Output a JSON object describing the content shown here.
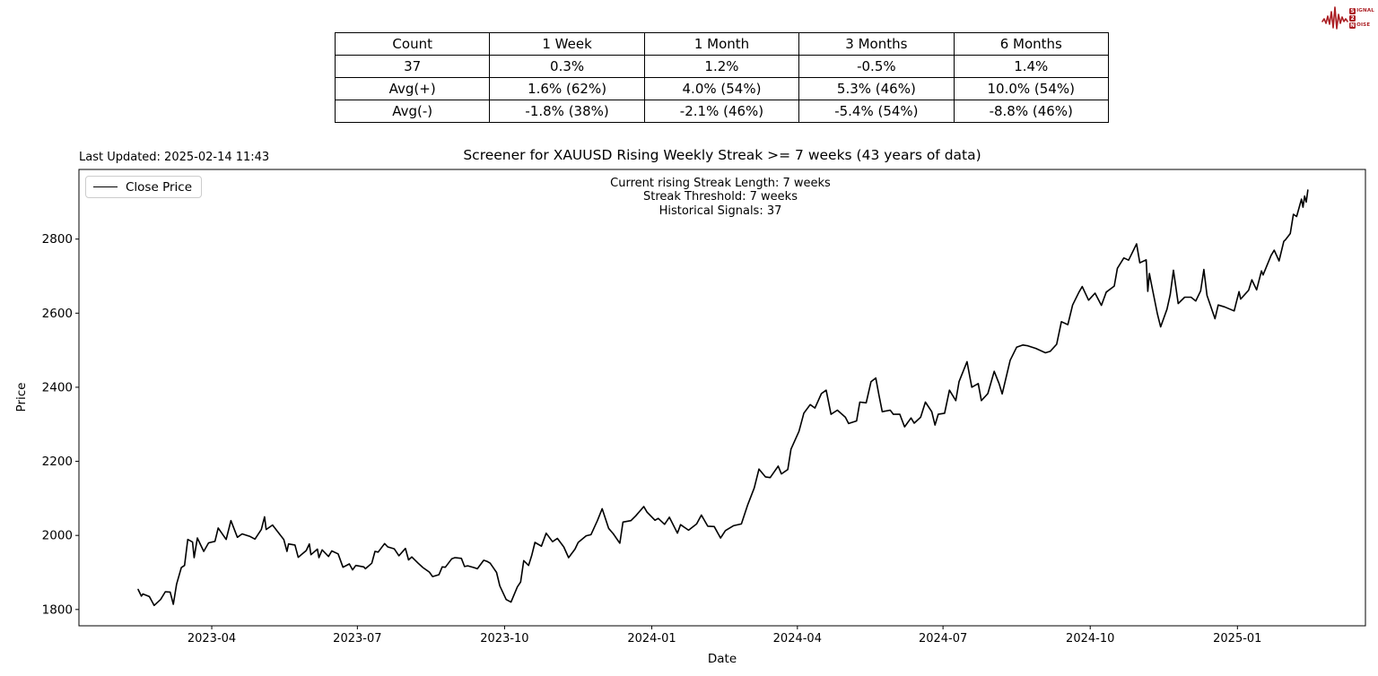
{
  "header": {
    "last_updated": "Last Updated: 2025-02-14 11:43",
    "title": "Screener for XAUUSD Rising Weekly Streak >= 7 weeks (43 years of data)"
  },
  "annotations": {
    "line1": "Current rising Streak Length: 7 weeks",
    "line2": "Streak Threshold: 7 weeks",
    "line3": "Historical Signals: 37"
  },
  "legend": {
    "label": "Close Price"
  },
  "logo": {
    "word1_initial": "S",
    "word1_rest": "IGNAL",
    "middle": "2",
    "word2_initial": "N",
    "word2_rest": "OISE",
    "accent_color": "#ab1f24"
  },
  "stats_table": {
    "headers": [
      "Count",
      "1 Week",
      "1 Month",
      "3 Months",
      "6 Months"
    ],
    "rows": [
      [
        "37",
        "0.3%",
        "1.2%",
        "-0.5%",
        "1.4%"
      ],
      [
        "Avg(+)",
        "1.6% (62%)",
        "4.0% (54%)",
        "5.3% (46%)",
        "10.0% (54%)"
      ],
      [
        "Avg(-)",
        "-1.8% (38%)",
        "-2.1% (46%)",
        "-5.4% (54%)",
        "-8.8% (46%)"
      ]
    ]
  },
  "chart_data": {
    "type": "line",
    "title": "Screener for XAUUSD Rising Weekly Streak >= 7 weeks (43 years of data)",
    "xlabel": "Date",
    "ylabel": "Price",
    "grid": false,
    "legend_position": "upper left",
    "line_color": "#000000",
    "xlim": [
      "2023-01-08",
      "2025-03-22"
    ],
    "ylim": [
      1756,
      2988
    ],
    "y_ticks": [
      1800,
      2000,
      2200,
      2400,
      2600,
      2800
    ],
    "x_ticks": [
      {
        "date": "2023-04-01",
        "label": "2023-04"
      },
      {
        "date": "2023-07-01",
        "label": "2023-07"
      },
      {
        "date": "2023-10-01",
        "label": "2023-10"
      },
      {
        "date": "2024-01-01",
        "label": "2024-01"
      },
      {
        "date": "2024-04-01",
        "label": "2024-04"
      },
      {
        "date": "2024-07-01",
        "label": "2024-07"
      },
      {
        "date": "2024-10-01",
        "label": "2024-10"
      },
      {
        "date": "2025-01-01",
        "label": "2025-01"
      }
    ],
    "series": [
      {
        "name": "Close Price",
        "data": [
          [
            "2023-02-14",
            1854
          ],
          [
            "2023-02-16",
            1836
          ],
          [
            "2023-02-17",
            1842
          ],
          [
            "2023-02-21",
            1835
          ],
          [
            "2023-02-24",
            1811
          ],
          [
            "2023-02-28",
            1827
          ],
          [
            "2023-03-03",
            1848
          ],
          [
            "2023-03-06",
            1847
          ],
          [
            "2023-03-08",
            1814
          ],
          [
            "2023-03-10",
            1868
          ],
          [
            "2023-03-13",
            1913
          ],
          [
            "2023-03-15",
            1919
          ],
          [
            "2023-03-17",
            1989
          ],
          [
            "2023-03-20",
            1982
          ],
          [
            "2023-03-21",
            1940
          ],
          [
            "2023-03-23",
            1993
          ],
          [
            "2023-03-27",
            1957
          ],
          [
            "2023-03-30",
            1980
          ],
          [
            "2023-04-03",
            1984
          ],
          [
            "2023-04-05",
            2020
          ],
          [
            "2023-04-10",
            1989
          ],
          [
            "2023-04-13",
            2040
          ],
          [
            "2023-04-17",
            1995
          ],
          [
            "2023-04-20",
            2004
          ],
          [
            "2023-04-25",
            1997
          ],
          [
            "2023-04-28",
            1990
          ],
          [
            "2023-05-02",
            2016
          ],
          [
            "2023-05-04",
            2050
          ],
          [
            "2023-05-05",
            2016
          ],
          [
            "2023-05-09",
            2028
          ],
          [
            "2023-05-12",
            2011
          ],
          [
            "2023-05-16",
            1989
          ],
          [
            "2023-05-18",
            1957
          ],
          [
            "2023-05-19",
            1977
          ],
          [
            "2023-05-23",
            1974
          ],
          [
            "2023-05-25",
            1941
          ],
          [
            "2023-05-30",
            1959
          ],
          [
            "2023-06-01",
            1977
          ],
          [
            "2023-06-02",
            1948
          ],
          [
            "2023-06-06",
            1963
          ],
          [
            "2023-06-07",
            1940
          ],
          [
            "2023-06-09",
            1961
          ],
          [
            "2023-06-13",
            1943
          ],
          [
            "2023-06-15",
            1958
          ],
          [
            "2023-06-19",
            1950
          ],
          [
            "2023-06-22",
            1914
          ],
          [
            "2023-06-26",
            1923
          ],
          [
            "2023-06-28",
            1907
          ],
          [
            "2023-06-30",
            1919
          ],
          [
            "2023-07-05",
            1915
          ],
          [
            "2023-07-06",
            1910
          ],
          [
            "2023-07-10",
            1925
          ],
          [
            "2023-07-12",
            1957
          ],
          [
            "2023-07-14",
            1955
          ],
          [
            "2023-07-18",
            1978
          ],
          [
            "2023-07-20",
            1969
          ],
          [
            "2023-07-24",
            1964
          ],
          [
            "2023-07-27",
            1945
          ],
          [
            "2023-07-31",
            1965
          ],
          [
            "2023-08-02",
            1934
          ],
          [
            "2023-08-04",
            1942
          ],
          [
            "2023-08-08",
            1925
          ],
          [
            "2023-08-11",
            1913
          ],
          [
            "2023-08-15",
            1901
          ],
          [
            "2023-08-17",
            1889
          ],
          [
            "2023-08-21",
            1894
          ],
          [
            "2023-08-23",
            1915
          ],
          [
            "2023-08-25",
            1914
          ],
          [
            "2023-08-29",
            1937
          ],
          [
            "2023-08-31",
            1940
          ],
          [
            "2023-09-04",
            1938
          ],
          [
            "2023-09-06",
            1916
          ],
          [
            "2023-09-08",
            1918
          ],
          [
            "2023-09-12",
            1913
          ],
          [
            "2023-09-14",
            1910
          ],
          [
            "2023-09-18",
            1933
          ],
          [
            "2023-09-20",
            1930
          ],
          [
            "2023-09-22",
            1925
          ],
          [
            "2023-09-26",
            1900
          ],
          [
            "2023-09-28",
            1864
          ],
          [
            "2023-10-02",
            1827
          ],
          [
            "2023-10-05",
            1820
          ],
          [
            "2023-10-09",
            1861
          ],
          [
            "2023-10-11",
            1874
          ],
          [
            "2023-10-13",
            1932
          ],
          [
            "2023-10-16",
            1919
          ],
          [
            "2023-10-18",
            1947
          ],
          [
            "2023-10-20",
            1981
          ],
          [
            "2023-10-24",
            1971
          ],
          [
            "2023-10-27",
            2006
          ],
          [
            "2023-10-31",
            1983
          ],
          [
            "2023-11-03",
            1992
          ],
          [
            "2023-11-07",
            1969
          ],
          [
            "2023-11-10",
            1940
          ],
          [
            "2023-11-14",
            1963
          ],
          [
            "2023-11-16",
            1981
          ],
          [
            "2023-11-21",
            1999
          ],
          [
            "2023-11-24",
            2002
          ],
          [
            "2023-11-28",
            2040
          ],
          [
            "2023-12-01",
            2072
          ],
          [
            "2023-12-05",
            2019
          ],
          [
            "2023-12-08",
            2004
          ],
          [
            "2023-12-12",
            1979
          ],
          [
            "2023-12-14",
            2036
          ],
          [
            "2023-12-19",
            2040
          ],
          [
            "2023-12-22",
            2053
          ],
          [
            "2023-12-27",
            2078
          ],
          [
            "2023-12-29",
            2063
          ],
          [
            "2024-01-03",
            2041
          ],
          [
            "2024-01-05",
            2046
          ],
          [
            "2024-01-09",
            2030
          ],
          [
            "2024-01-12",
            2049
          ],
          [
            "2024-01-17",
            2006
          ],
          [
            "2024-01-19",
            2029
          ],
          [
            "2024-01-24",
            2014
          ],
          [
            "2024-01-29",
            2031
          ],
          [
            "2024-02-01",
            2055
          ],
          [
            "2024-02-05",
            2025
          ],
          [
            "2024-02-09",
            2024
          ],
          [
            "2024-02-13",
            1993
          ],
          [
            "2024-02-16",
            2013
          ],
          [
            "2024-02-21",
            2026
          ],
          [
            "2024-02-26",
            2031
          ],
          [
            "2024-03-01",
            2083
          ],
          [
            "2024-03-05",
            2128
          ],
          [
            "2024-03-08",
            2179
          ],
          [
            "2024-03-12",
            2158
          ],
          [
            "2024-03-15",
            2156
          ],
          [
            "2024-03-20",
            2187
          ],
          [
            "2024-03-22",
            2166
          ],
          [
            "2024-03-26",
            2178
          ],
          [
            "2024-03-28",
            2233
          ],
          [
            "2024-04-02",
            2281
          ],
          [
            "2024-04-05",
            2330
          ],
          [
            "2024-04-09",
            2353
          ],
          [
            "2024-04-12",
            2344
          ],
          [
            "2024-04-16",
            2383
          ],
          [
            "2024-04-19",
            2392
          ],
          [
            "2024-04-22",
            2327
          ],
          [
            "2024-04-26",
            2338
          ],
          [
            "2024-05-01",
            2319
          ],
          [
            "2024-05-03",
            2302
          ],
          [
            "2024-05-08",
            2309
          ],
          [
            "2024-05-10",
            2360
          ],
          [
            "2024-05-14",
            2358
          ],
          [
            "2024-05-17",
            2415
          ],
          [
            "2024-05-20",
            2425
          ],
          [
            "2024-05-22",
            2378
          ],
          [
            "2024-05-24",
            2334
          ],
          [
            "2024-05-29",
            2338
          ],
          [
            "2024-05-31",
            2327
          ],
          [
            "2024-06-04",
            2327
          ],
          [
            "2024-06-07",
            2293
          ],
          [
            "2024-06-11",
            2317
          ],
          [
            "2024-06-13",
            2303
          ],
          [
            "2024-06-17",
            2319
          ],
          [
            "2024-06-20",
            2360
          ],
          [
            "2024-06-24",
            2334
          ],
          [
            "2024-06-26",
            2298
          ],
          [
            "2024-06-28",
            2327
          ],
          [
            "2024-07-02",
            2330
          ],
          [
            "2024-07-05",
            2392
          ],
          [
            "2024-07-09",
            2364
          ],
          [
            "2024-07-11",
            2415
          ],
          [
            "2024-07-16",
            2469
          ],
          [
            "2024-07-19",
            2400
          ],
          [
            "2024-07-23",
            2410
          ],
          [
            "2024-07-25",
            2364
          ],
          [
            "2024-07-29",
            2383
          ],
          [
            "2024-08-02",
            2443
          ],
          [
            "2024-08-05",
            2410
          ],
          [
            "2024-08-07",
            2382
          ],
          [
            "2024-08-12",
            2473
          ],
          [
            "2024-08-16",
            2508
          ],
          [
            "2024-08-20",
            2514
          ],
          [
            "2024-08-23",
            2512
          ],
          [
            "2024-08-28",
            2505
          ],
          [
            "2024-09-03",
            2493
          ],
          [
            "2024-09-06",
            2497
          ],
          [
            "2024-09-10",
            2516
          ],
          [
            "2024-09-13",
            2577
          ],
          [
            "2024-09-17",
            2569
          ],
          [
            "2024-09-20",
            2622
          ],
          [
            "2024-09-24",
            2657
          ],
          [
            "2024-09-26",
            2672
          ],
          [
            "2024-09-30",
            2635
          ],
          [
            "2024-10-04",
            2654
          ],
          [
            "2024-10-08",
            2621
          ],
          [
            "2024-10-11",
            2657
          ],
          [
            "2024-10-16",
            2673
          ],
          [
            "2024-10-18",
            2721
          ],
          [
            "2024-10-22",
            2749
          ],
          [
            "2024-10-25",
            2743
          ],
          [
            "2024-10-30",
            2787
          ],
          [
            "2024-11-01",
            2736
          ],
          [
            "2024-11-05",
            2744
          ],
          [
            "2024-11-06",
            2659
          ],
          [
            "2024-11-07",
            2707
          ],
          [
            "2024-11-08",
            2684
          ],
          [
            "2024-11-12",
            2598
          ],
          [
            "2024-11-14",
            2563
          ],
          [
            "2024-11-18",
            2611
          ],
          [
            "2024-11-20",
            2650
          ],
          [
            "2024-11-22",
            2716
          ],
          [
            "2024-11-25",
            2626
          ],
          [
            "2024-11-29",
            2643
          ],
          [
            "2024-12-03",
            2643
          ],
          [
            "2024-12-06",
            2633
          ],
          [
            "2024-12-09",
            2660
          ],
          [
            "2024-12-11",
            2718
          ],
          [
            "2024-12-13",
            2648
          ],
          [
            "2024-12-18",
            2585
          ],
          [
            "2024-12-20",
            2622
          ],
          [
            "2024-12-24",
            2617
          ],
          [
            "2024-12-30",
            2606
          ],
          [
            "2024-12-31",
            2624
          ],
          [
            "2025-01-02",
            2658
          ],
          [
            "2025-01-03",
            2638
          ],
          [
            "2025-01-08",
            2662
          ],
          [
            "2025-01-10",
            2690
          ],
          [
            "2025-01-13",
            2663
          ],
          [
            "2025-01-16",
            2714
          ],
          [
            "2025-01-17",
            2703
          ],
          [
            "2025-01-22",
            2756
          ],
          [
            "2025-01-24",
            2770
          ],
          [
            "2025-01-27",
            2741
          ],
          [
            "2025-01-30",
            2794
          ],
          [
            "2025-01-31",
            2798
          ],
          [
            "2025-02-03",
            2815
          ],
          [
            "2025-02-05",
            2867
          ],
          [
            "2025-02-07",
            2861
          ],
          [
            "2025-02-10",
            2908
          ],
          [
            "2025-02-11",
            2886
          ],
          [
            "2025-02-12",
            2916
          ],
          [
            "2025-02-13",
            2900
          ],
          [
            "2025-02-14",
            2932
          ]
        ]
      }
    ]
  }
}
